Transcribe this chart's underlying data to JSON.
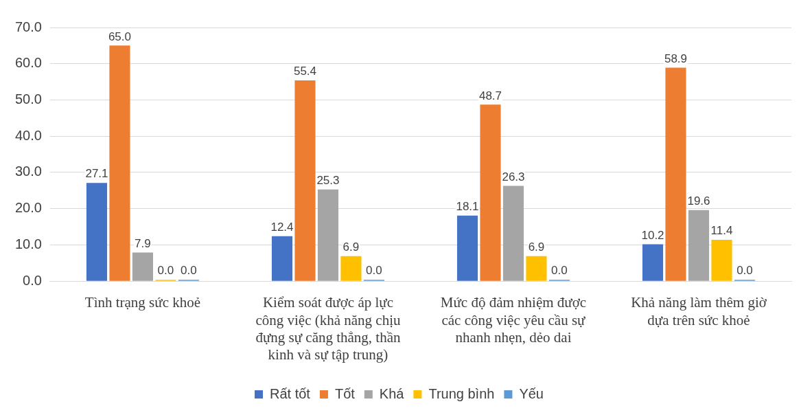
{
  "chart_data": {
    "type": "bar",
    "categories": [
      "Tình trạng sức khoẻ",
      "Kiểm soát được áp lực công việc (khả năng chịu đựng sự căng thẳng, thần kinh và sự tập trung)",
      "Mức độ đảm nhiệm được các công việc yêu cầu sự nhanh nhẹn, dẻo dai",
      "Khả năng làm thêm giờ dựa trên sức khoẻ"
    ],
    "series": [
      {
        "name": "Rất tốt",
        "color": "#4472c4",
        "values": [
          27.1,
          12.4,
          18.1,
          10.2
        ],
        "value_labels": [
          "27.1",
          "12.4",
          "18.1",
          "10.2"
        ]
      },
      {
        "name": "Tốt",
        "color": "#ed7d31",
        "values": [
          65.0,
          55.4,
          48.7,
          58.9
        ],
        "value_labels": [
          "65.0",
          "55.4",
          "48.7",
          "58.9"
        ]
      },
      {
        "name": "Khá",
        "color": "#a5a5a5",
        "values": [
          7.9,
          25.3,
          26.3,
          19.6
        ],
        "value_labels": [
          "7.9",
          "25.3",
          "26.3",
          "19.6"
        ]
      },
      {
        "name": "Trung bình",
        "color": "#ffc000",
        "values": [
          0.0,
          6.9,
          6.9,
          11.4
        ],
        "value_labels": [
          "0.0",
          "6.9",
          "6.9",
          "11.4"
        ]
      },
      {
        "name": "Yếu",
        "color": "#5b9bd5",
        "values": [
          0.0,
          0.0,
          0.0,
          0.0
        ],
        "value_labels": [
          "0.0",
          "0.0",
          "0.0",
          "0.0"
        ]
      }
    ],
    "ylim": [
      0,
      70
    ],
    "yticks": [
      {
        "value": 0,
        "label": "0.0"
      },
      {
        "value": 10,
        "label": "10.0"
      },
      {
        "value": 20,
        "label": "20.0"
      },
      {
        "value": 30,
        "label": "30.0"
      },
      {
        "value": 40,
        "label": "40.0"
      },
      {
        "value": 50,
        "label": "50.0"
      },
      {
        "value": 60,
        "label": "60.0"
      },
      {
        "value": 70,
        "label": "70.0"
      }
    ],
    "grid": "y",
    "legend": "bottom"
  }
}
